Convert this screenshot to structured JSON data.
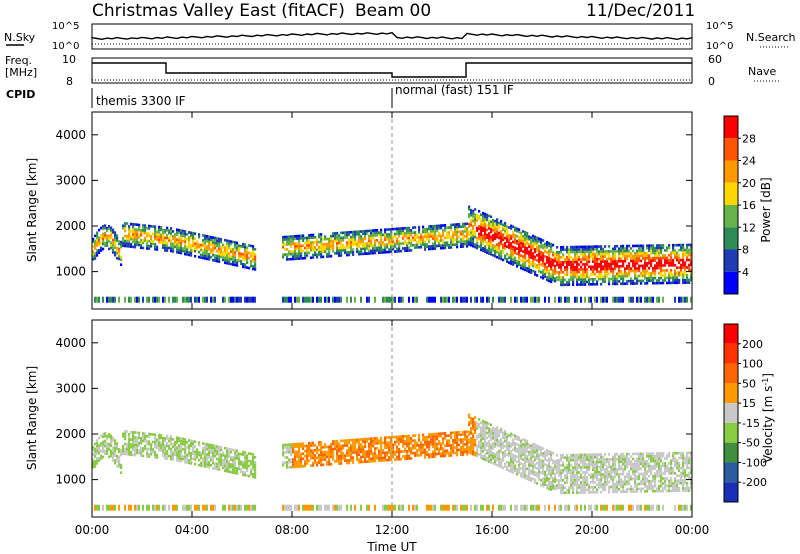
{
  "header": {
    "title": "Christmas Valley East (fitACF)",
    "beam": "Beam 00",
    "date": "11/Dec/2011"
  },
  "panels": {
    "nsky_label": "N.Sky",
    "nsearch_label": "N.Search",
    "freq_label": "Freq.",
    "freq_unit": "[MHz]",
    "nave_label": "Nave",
    "cpid_label": "CPID",
    "nsky_ticks": [
      "10^5",
      "10^0"
    ],
    "nsearch_ticks": [
      "10^5",
      "10^0"
    ],
    "freq_ticks": [
      "10",
      "8"
    ],
    "nave_ticks": [
      "60",
      "0"
    ],
    "cpid_modes": [
      "themis 3300 IF",
      "normal (fast) 151 IF"
    ]
  },
  "colors": {
    "power": [
      "#0000ff",
      "#1e3cb4",
      "#2e8b57",
      "#66b34c",
      "#ffd700",
      "#ff9900",
      "#ff5500",
      "#ff0000"
    ],
    "velocity": [
      "#1a2fb5",
      "#2a5d9f",
      "#3f8f3f",
      "#88cc44",
      "#c8c8c8",
      "#ff9900",
      "#ff6600",
      "#ff3300",
      "#ff0000"
    ]
  },
  "chart_data": [
    {
      "type": "heatmap",
      "name": "power",
      "ylabel": "Slant Range [km]",
      "x_ticks": [
        "00:00",
        "04:00",
        "08:00",
        "12:00",
        "16:00",
        "20:00",
        "00:00"
      ],
      "y_ticks": [
        1000,
        2000,
        3000,
        4000
      ],
      "colorbar_label": "Power [dB]",
      "colorbar_ticks": [
        4,
        8,
        12,
        16,
        20,
        24,
        28
      ],
      "ylim": [
        180,
        4500
      ]
    },
    {
      "type": "heatmap",
      "name": "velocity",
      "ylabel": "Slant Range [km]",
      "x_ticks": [
        "00:00",
        "04:00",
        "08:00",
        "12:00",
        "16:00",
        "20:00",
        "00:00"
      ],
      "xlabel": "Time UT",
      "y_ticks": [
        1000,
        2000,
        3000,
        4000
      ],
      "colorbar_label": "Velocity [m s^-1]",
      "colorbar_ticks": [
        200,
        100,
        50,
        15,
        -15,
        -50,
        -100,
        -200
      ],
      "ylim": [
        180,
        4500
      ]
    }
  ]
}
